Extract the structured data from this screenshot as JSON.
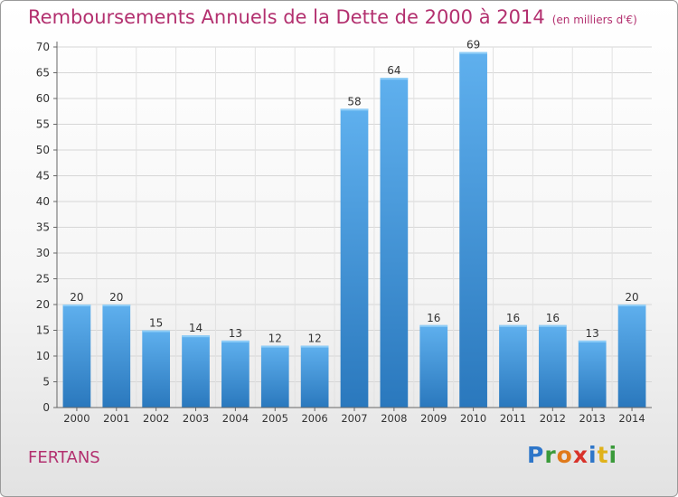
{
  "title": "Remboursements Annuels de la Dette de 2000 à 2014",
  "subtitle": "(en milliers d'€)",
  "place": "FERTANS",
  "logo": {
    "text": "Proxiti",
    "letter_colors": [
      "#2e76c9",
      "#3a9a3a",
      "#e07a1a",
      "#d8322a",
      "#2e76c9",
      "#e0b21a",
      "#3a9a3a"
    ]
  },
  "colors": {
    "title": "#b3306f",
    "bar_light": "#5fb0ee",
    "bar_dark": "#2a78bd"
  },
  "chart_data": {
    "type": "bar",
    "categories": [
      "2000",
      "2001",
      "2002",
      "2003",
      "2004",
      "2005",
      "2006",
      "2007",
      "2008",
      "2009",
      "2010",
      "2011",
      "2012",
      "2013",
      "2014"
    ],
    "values": [
      20,
      20,
      15,
      14,
      13,
      12,
      12,
      58,
      64,
      16,
      69,
      16,
      16,
      13,
      20
    ],
    "ylim": [
      0,
      70
    ],
    "yticks": [
      0,
      5,
      10,
      15,
      20,
      25,
      30,
      35,
      40,
      45,
      50,
      55,
      60,
      65,
      70
    ],
    "grid": true,
    "data_labels": true
  }
}
